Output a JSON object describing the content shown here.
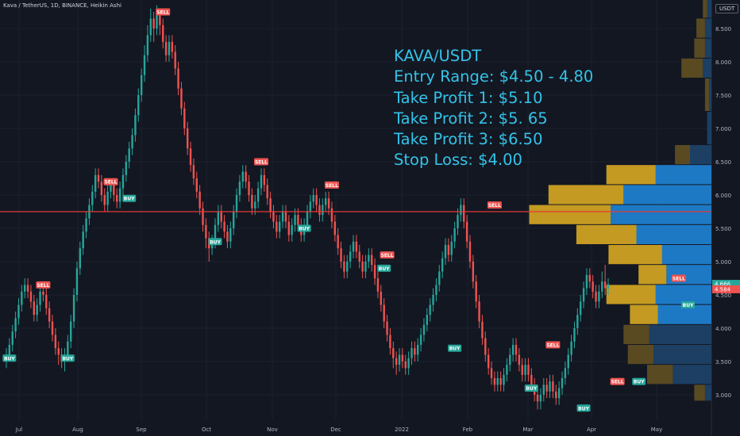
{
  "header": {
    "symbol": "Kava / TetherUS, 1D, BINANCE, Heikin Ashi"
  },
  "currency": "USDT",
  "note": {
    "lines": [
      "KAVA/USDT",
      "Entry Range: $4.50 - 4.80",
      "Take Profit 1: $5.10",
      "Take Profit 2: $5. 65",
      "Take Profit 3: $6.50",
      "Stop Loss: $4.00"
    ]
  },
  "colors": {
    "background": "#131722",
    "up": "#26a69a",
    "down": "#ef5350",
    "note_text": "#33c3e8",
    "horizontal_line": "#e53935",
    "vp_gold": "#c49a22",
    "vp_blue": "#1e79c4"
  },
  "chart_data": {
    "type": "candlestick",
    "title": "Kava / TetherUS, 1D, BINANCE, Heikin Ashi",
    "x_tick_labels": [
      "Jul",
      "Aug",
      "Sep",
      "Oct",
      "Nov",
      "Dec",
      "2022",
      "Feb",
      "Mar",
      "Apr",
      "May"
    ],
    "y_tick_labels": [
      "3.000",
      "3.500",
      "4.000",
      "4.500",
      "5.000",
      "5.500",
      "6.000",
      "6.500",
      "7.000",
      "7.500",
      "8.000",
      "8.500"
    ],
    "ylim": [
      2.6,
      9.1
    ],
    "grid": true,
    "horizontal_line": 5.75,
    "price_labels": [
      {
        "value": "4.666",
        "sub": "06:55:43",
        "price": 4.666,
        "color": "#26a69a"
      },
      {
        "value": "4.584",
        "price": 4.584,
        "color": "#ef5350"
      }
    ],
    "signals": [
      {
        "label": "BUY",
        "date_index": 1,
        "price": 3.55
      },
      {
        "label": "SELL",
        "date_index": 12,
        "price": 4.65
      },
      {
        "label": "BUY",
        "date_index": 20,
        "price": 3.55
      },
      {
        "label": "SELL",
        "date_index": 34,
        "price": 6.2
      },
      {
        "label": "BUY",
        "date_index": 40,
        "price": 5.95
      },
      {
        "label": "SELL",
        "date_index": 51,
        "price": 8.75
      },
      {
        "label": "BUY",
        "date_index": 68,
        "price": 5.3
      },
      {
        "label": "SELL",
        "date_index": 83,
        "price": 6.5
      },
      {
        "label": "BUY",
        "date_index": 97,
        "price": 5.5
      },
      {
        "label": "SELL",
        "date_index": 106,
        "price": 6.15
      },
      {
        "label": "SELL",
        "date_index": 124,
        "price": 5.1
      },
      {
        "label": "BUY",
        "date_index": 123,
        "price": 4.9
      },
      {
        "label": "SELL",
        "date_index": 159,
        "price": 5.85
      },
      {
        "label": "BUY",
        "date_index": 146,
        "price": 3.7
      },
      {
        "label": "SELL",
        "date_index": 178,
        "price": 3.75
      },
      {
        "label": "BUY",
        "date_index": 171,
        "price": 3.1
      },
      {
        "label": "SELL",
        "date_index": 199,
        "price": 3.2
      },
      {
        "label": "BUY",
        "date_index": 188,
        "price": 2.8
      },
      {
        "label": "BUY",
        "date_index": 206,
        "price": 3.2
      },
      {
        "label": "SELL",
        "date_index": 219,
        "price": 4.75
      },
      {
        "label": "BUY",
        "date_index": 222,
        "price": 4.35
      }
    ],
    "candles": [
      [
        3.55,
        3.6,
        3.4,
        3.7
      ],
      [
        3.6,
        3.75,
        3.5,
        3.85
      ],
      [
        3.75,
        3.95,
        3.65,
        4.05
      ],
      [
        3.95,
        4.15,
        3.85,
        4.25
      ],
      [
        4.15,
        4.35,
        4.05,
        4.45
      ],
      [
        4.35,
        4.55,
        4.25,
        4.65
      ],
      [
        4.55,
        4.65,
        4.45,
        4.75
      ],
      [
        4.65,
        4.55,
        4.45,
        4.75
      ],
      [
        4.55,
        4.4,
        4.3,
        4.65
      ],
      [
        4.4,
        4.2,
        4.1,
        4.5
      ],
      [
        4.2,
        4.35,
        4.1,
        4.45
      ],
      [
        4.35,
        4.55,
        4.25,
        4.65
      ],
      [
        4.55,
        4.5,
        4.4,
        4.65
      ],
      [
        4.5,
        4.3,
        4.2,
        4.6
      ],
      [
        4.3,
        4.1,
        4.0,
        4.4
      ],
      [
        4.1,
        3.9,
        3.8,
        4.2
      ],
      [
        3.9,
        3.7,
        3.6,
        4.0
      ],
      [
        3.7,
        3.6,
        3.45,
        3.8
      ],
      [
        3.6,
        3.5,
        3.4,
        3.7
      ],
      [
        3.5,
        3.6,
        3.35,
        3.7
      ],
      [
        3.6,
        3.8,
        3.5,
        3.9
      ],
      [
        3.8,
        4.1,
        3.7,
        4.2
      ],
      [
        4.1,
        4.5,
        4.0,
        4.6
      ],
      [
        4.5,
        4.9,
        4.4,
        5.0
      ],
      [
        4.9,
        5.2,
        4.8,
        5.3
      ],
      [
        5.2,
        5.45,
        5.1,
        5.55
      ],
      [
        5.45,
        5.65,
        5.35,
        5.75
      ],
      [
        5.65,
        5.85,
        5.55,
        5.95
      ],
      [
        5.85,
        6.05,
        5.75,
        6.15
      ],
      [
        6.05,
        6.3,
        5.95,
        6.4
      ],
      [
        6.3,
        6.2,
        6.1,
        6.4
      ],
      [
        6.2,
        6.0,
        5.9,
        6.3
      ],
      [
        6.0,
        5.85,
        5.75,
        6.1
      ],
      [
        5.85,
        6.05,
        5.75,
        6.15
      ],
      [
        6.05,
        6.15,
        5.95,
        6.25
      ],
      [
        6.15,
        6.0,
        5.9,
        6.25
      ],
      [
        6.0,
        5.9,
        5.8,
        6.1
      ],
      [
        5.9,
        6.1,
        5.8,
        6.2
      ],
      [
        6.1,
        6.3,
        6.0,
        6.4
      ],
      [
        6.3,
        6.5,
        6.2,
        6.6
      ],
      [
        6.5,
        6.7,
        6.4,
        6.8
      ],
      [
        6.7,
        6.9,
        6.6,
        7.0
      ],
      [
        6.9,
        7.2,
        6.8,
        7.3
      ],
      [
        7.2,
        7.5,
        7.1,
        7.6
      ],
      [
        7.5,
        7.8,
        7.4,
        7.9
      ],
      [
        7.8,
        8.1,
        7.7,
        8.25
      ],
      [
        8.1,
        8.4,
        8.0,
        8.55
      ],
      [
        8.4,
        8.65,
        8.3,
        8.8
      ],
      [
        8.65,
        8.5,
        8.3,
        8.75
      ],
      [
        8.5,
        8.7,
        8.4,
        8.85
      ],
      [
        8.7,
        8.55,
        8.4,
        8.8
      ],
      [
        8.55,
        8.3,
        8.2,
        8.65
      ],
      [
        8.3,
        8.1,
        8.0,
        8.4
      ],
      [
        8.1,
        8.3,
        8.0,
        8.4
      ],
      [
        8.3,
        8.15,
        8.05,
        8.4
      ],
      [
        8.15,
        7.9,
        7.8,
        8.25
      ],
      [
        7.9,
        7.6,
        7.5,
        8.0
      ],
      [
        7.6,
        7.3,
        7.2,
        7.7
      ],
      [
        7.3,
        7.0,
        6.9,
        7.4
      ],
      [
        7.0,
        6.7,
        6.6,
        7.1
      ],
      [
        6.7,
        6.45,
        6.35,
        6.8
      ],
      [
        6.45,
        6.25,
        6.15,
        6.55
      ],
      [
        6.25,
        6.05,
        5.95,
        6.35
      ],
      [
        6.05,
        5.8,
        5.7,
        6.15
      ],
      [
        5.8,
        5.55,
        5.45,
        5.9
      ],
      [
        5.55,
        5.35,
        5.2,
        5.65
      ],
      [
        5.35,
        5.2,
        5.0,
        5.45
      ],
      [
        5.2,
        5.3,
        5.1,
        5.4
      ],
      [
        5.3,
        5.55,
        5.2,
        5.65
      ],
      [
        5.55,
        5.75,
        5.45,
        5.85
      ],
      [
        5.75,
        5.6,
        5.5,
        5.85
      ],
      [
        5.6,
        5.45,
        5.35,
        5.7
      ],
      [
        5.45,
        5.3,
        5.2,
        5.55
      ],
      [
        5.3,
        5.5,
        5.2,
        5.6
      ],
      [
        5.5,
        5.75,
        5.4,
        5.85
      ],
      [
        5.75,
        6.0,
        5.65,
        6.1
      ],
      [
        6.0,
        6.2,
        5.9,
        6.3
      ],
      [
        6.2,
        6.35,
        6.1,
        6.45
      ],
      [
        6.35,
        6.2,
        6.1,
        6.45
      ],
      [
        6.2,
        6.0,
        5.9,
        6.3
      ],
      [
        6.0,
        5.8,
        5.7,
        6.1
      ],
      [
        5.8,
        5.9,
        5.7,
        6.0
      ],
      [
        5.9,
        6.1,
        5.8,
        6.2
      ],
      [
        6.1,
        6.3,
        6.0,
        6.4
      ],
      [
        6.3,
        6.15,
        6.05,
        6.4
      ],
      [
        6.15,
        5.95,
        5.85,
        6.25
      ],
      [
        5.95,
        5.75,
        5.65,
        6.05
      ],
      [
        5.75,
        5.6,
        5.5,
        5.85
      ],
      [
        5.6,
        5.45,
        5.35,
        5.7
      ],
      [
        5.45,
        5.6,
        5.35,
        5.7
      ],
      [
        5.6,
        5.75,
        5.5,
        5.85
      ],
      [
        5.75,
        5.6,
        5.5,
        5.85
      ],
      [
        5.6,
        5.4,
        5.3,
        5.7
      ],
      [
        5.4,
        5.55,
        5.3,
        5.65
      ],
      [
        5.55,
        5.7,
        5.45,
        5.8
      ],
      [
        5.7,
        5.55,
        5.45,
        5.8
      ],
      [
        5.55,
        5.4,
        5.3,
        5.65
      ],
      [
        5.4,
        5.55,
        5.3,
        5.65
      ],
      [
        5.55,
        5.75,
        5.45,
        5.85
      ],
      [
        5.75,
        5.9,
        5.65,
        6.0
      ],
      [
        5.9,
        6.0,
        5.8,
        6.1
      ],
      [
        6.0,
        5.85,
        5.75,
        6.1
      ],
      [
        5.85,
        5.7,
        5.6,
        5.95
      ],
      [
        5.7,
        5.85,
        5.6,
        5.95
      ],
      [
        5.85,
        5.95,
        5.75,
        6.05
      ],
      [
        5.95,
        5.8,
        5.7,
        6.05
      ],
      [
        5.8,
        5.6,
        5.5,
        5.9
      ],
      [
        5.6,
        5.4,
        5.3,
        5.7
      ],
      [
        5.4,
        5.2,
        5.1,
        5.5
      ],
      [
        5.2,
        5.0,
        4.9,
        5.3
      ],
      [
        5.0,
        4.85,
        4.75,
        5.1
      ],
      [
        4.85,
        5.0,
        4.75,
        5.1
      ],
      [
        5.0,
        5.15,
        4.9,
        5.25
      ],
      [
        5.15,
        5.3,
        5.05,
        5.4
      ],
      [
        5.3,
        5.15,
        5.05,
        5.4
      ],
      [
        5.15,
        5.0,
        4.9,
        5.25
      ],
      [
        5.0,
        4.85,
        4.75,
        5.1
      ],
      [
        4.85,
        5.0,
        4.75,
        5.1
      ],
      [
        5.0,
        5.1,
        4.9,
        5.2
      ],
      [
        5.1,
        4.95,
        4.85,
        5.2
      ],
      [
        4.95,
        4.75,
        4.65,
        5.05
      ],
      [
        4.75,
        4.55,
        4.45,
        4.85
      ],
      [
        4.55,
        4.35,
        4.25,
        4.65
      ],
      [
        4.35,
        4.1,
        4.0,
        4.45
      ],
      [
        4.1,
        3.9,
        3.8,
        4.2
      ],
      [
        3.9,
        3.7,
        3.6,
        4.0
      ],
      [
        3.7,
        3.55,
        3.4,
        3.8
      ],
      [
        3.55,
        3.45,
        3.3,
        3.65
      ],
      [
        3.45,
        3.6,
        3.35,
        3.7
      ],
      [
        3.6,
        3.5,
        3.4,
        3.7
      ],
      [
        3.5,
        3.4,
        3.3,
        3.6
      ],
      [
        3.4,
        3.55,
        3.3,
        3.65
      ],
      [
        3.55,
        3.7,
        3.45,
        3.8
      ],
      [
        3.7,
        3.6,
        3.5,
        3.8
      ],
      [
        3.6,
        3.75,
        3.5,
        3.85
      ],
      [
        3.75,
        3.9,
        3.65,
        4.0
      ],
      [
        3.9,
        4.05,
        3.8,
        4.15
      ],
      [
        4.05,
        4.2,
        3.95,
        4.3
      ],
      [
        4.2,
        4.35,
        4.1,
        4.45
      ],
      [
        4.35,
        4.5,
        4.25,
        4.6
      ],
      [
        4.5,
        4.65,
        4.4,
        4.75
      ],
      [
        4.65,
        4.85,
        4.55,
        4.95
      ],
      [
        4.85,
        5.05,
        4.75,
        5.15
      ],
      [
        5.05,
        5.25,
        4.95,
        5.35
      ],
      [
        5.25,
        5.1,
        5.0,
        5.35
      ],
      [
        5.1,
        5.3,
        5.0,
        5.4
      ],
      [
        5.3,
        5.5,
        5.2,
        5.6
      ],
      [
        5.5,
        5.7,
        5.4,
        5.8
      ],
      [
        5.7,
        5.85,
        5.6,
        5.95
      ],
      [
        5.85,
        5.6,
        5.5,
        5.95
      ],
      [
        5.6,
        5.3,
        5.2,
        5.7
      ],
      [
        5.3,
        5.0,
        4.9,
        5.4
      ],
      [
        5.0,
        4.7,
        4.6,
        5.1
      ],
      [
        4.7,
        4.4,
        4.3,
        4.8
      ],
      [
        4.4,
        4.1,
        4.0,
        4.5
      ],
      [
        4.1,
        3.85,
        3.75,
        4.2
      ],
      [
        3.85,
        3.6,
        3.5,
        3.95
      ],
      [
        3.6,
        3.4,
        3.3,
        3.7
      ],
      [
        3.4,
        3.25,
        3.15,
        3.5
      ],
      [
        3.25,
        3.15,
        3.05,
        3.35
      ],
      [
        3.15,
        3.25,
        3.05,
        3.35
      ],
      [
        3.25,
        3.15,
        3.05,
        3.35
      ],
      [
        3.15,
        3.3,
        3.05,
        3.4
      ],
      [
        3.3,
        3.45,
        3.2,
        3.55
      ],
      [
        3.45,
        3.6,
        3.35,
        3.7
      ],
      [
        3.6,
        3.75,
        3.5,
        3.85
      ],
      [
        3.75,
        3.6,
        3.5,
        3.85
      ],
      [
        3.6,
        3.45,
        3.35,
        3.7
      ],
      [
        3.45,
        3.3,
        3.2,
        3.55
      ],
      [
        3.3,
        3.45,
        3.2,
        3.55
      ],
      [
        3.45,
        3.3,
        3.2,
        3.55
      ],
      [
        3.3,
        3.15,
        3.05,
        3.4
      ],
      [
        3.15,
        3.0,
        2.9,
        3.25
      ],
      [
        3.0,
        2.9,
        2.78,
        3.1
      ],
      [
        2.9,
        3.0,
        2.78,
        3.1
      ],
      [
        3.0,
        3.15,
        2.9,
        3.25
      ],
      [
        3.15,
        3.05,
        2.95,
        3.25
      ],
      [
        3.05,
        3.2,
        2.95,
        3.3
      ],
      [
        3.2,
        3.05,
        2.95,
        3.3
      ],
      [
        3.05,
        2.95,
        2.85,
        3.15
      ],
      [
        2.95,
        3.1,
        2.85,
        3.2
      ],
      [
        3.1,
        3.25,
        3.0,
        3.35
      ],
      [
        3.25,
        3.4,
        3.15,
        3.5
      ],
      [
        3.4,
        3.6,
        3.3,
        3.7
      ],
      [
        3.6,
        3.8,
        3.5,
        3.9
      ],
      [
        3.8,
        4.0,
        3.7,
        4.1
      ],
      [
        4.0,
        4.2,
        3.9,
        4.3
      ],
      [
        4.2,
        4.4,
        4.1,
        4.5
      ],
      [
        4.4,
        4.6,
        4.3,
        4.7
      ],
      [
        4.6,
        4.8,
        4.5,
        4.9
      ],
      [
        4.8,
        4.7,
        4.6,
        4.9
      ],
      [
        4.7,
        4.55,
        4.45,
        4.8
      ],
      [
        4.55,
        4.4,
        4.3,
        4.65
      ],
      [
        4.4,
        4.55,
        4.3,
        4.65
      ],
      [
        4.55,
        4.7,
        4.45,
        4.85
      ],
      [
        4.7,
        4.6,
        4.5,
        4.95
      ],
      [
        4.6,
        4.66,
        4.5,
        4.75
      ]
    ],
    "volume_profile": [
      {
        "price_low": 2.9,
        "price_high": 3.15,
        "gold": 0.05,
        "blue": 0.03
      },
      {
        "price_low": 3.15,
        "price_high": 3.45,
        "gold": 0.12,
        "blue": 0.18
      },
      {
        "price_low": 3.45,
        "price_high": 3.75,
        "gold": 0.12,
        "blue": 0.27
      },
      {
        "price_low": 3.75,
        "price_high": 4.05,
        "gold": 0.12,
        "blue": 0.29
      },
      {
        "price_low": 4.05,
        "price_high": 4.35,
        "gold": 0.13,
        "blue": 0.25
      },
      {
        "price_low": 4.35,
        "price_high": 4.65,
        "gold": 0.23,
        "blue": 0.26
      },
      {
        "price_low": 4.65,
        "price_high": 4.95,
        "gold": 0.13,
        "blue": 0.21
      },
      {
        "price_low": 4.95,
        "price_high": 5.25,
        "gold": 0.25,
        "blue": 0.23
      },
      {
        "price_low": 5.25,
        "price_high": 5.55,
        "gold": 0.28,
        "blue": 0.35
      },
      {
        "price_low": 5.55,
        "price_high": 5.85,
        "gold": 0.38,
        "blue": 0.47
      },
      {
        "price_low": 5.85,
        "price_high": 6.15,
        "gold": 0.35,
        "blue": 0.41
      },
      {
        "price_low": 6.15,
        "price_high": 6.45,
        "gold": 0.23,
        "blue": 0.26
      },
      {
        "price_low": 6.45,
        "price_high": 6.75,
        "gold": 0.07,
        "blue": 0.1
      },
      {
        "price_low": 6.75,
        "price_high": 7.25,
        "gold": 0.0,
        "blue": 0.02
      },
      {
        "price_low": 7.25,
        "price_high": 7.75,
        "gold": 0.02,
        "blue": 0.01
      },
      {
        "price_low": 7.75,
        "price_high": 8.05,
        "gold": 0.1,
        "blue": 0.04
      },
      {
        "price_low": 8.05,
        "price_high": 8.35,
        "gold": 0.05,
        "blue": 0.03
      },
      {
        "price_low": 8.35,
        "price_high": 8.65,
        "gold": 0.04,
        "blue": 0.03
      },
      {
        "price_low": 8.65,
        "price_high": 9.0,
        "gold": 0.02,
        "blue": 0.02
      }
    ]
  }
}
